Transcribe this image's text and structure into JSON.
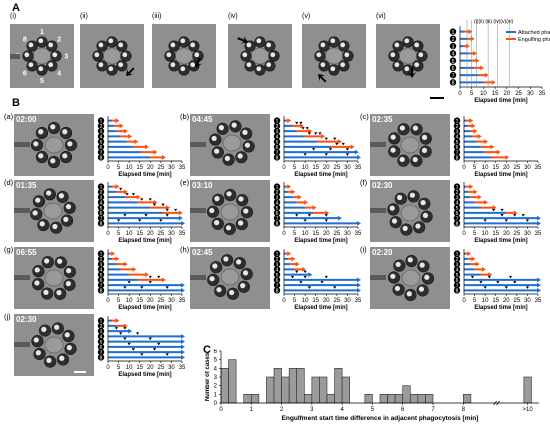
{
  "panel_A": {
    "label": "A",
    "subs": [
      "(i)",
      "(ii)",
      "(iii)",
      "(iv)",
      "(v)",
      "(vi)"
    ],
    "cells": [
      "1",
      "2",
      "3",
      "4",
      "5",
      "6",
      "7",
      "8"
    ],
    "legend": {
      "attached": "Attached phase",
      "engulfing": "Engulfing phase"
    },
    "timeline_marks": "(i)(ii) (iii) (iv)(v)(vi)",
    "xlabel": "Elapsed time [min]",
    "ticks": [
      "0",
      "5",
      "10",
      "15",
      "20",
      "25",
      "30",
      "35"
    ]
  },
  "panel_B": {
    "label": "B",
    "panels": [
      {
        "sub": "(a)",
        "time": "02:00"
      },
      {
        "sub": "(b)",
        "time": "04:45"
      },
      {
        "sub": "(c)",
        "time": "02:35"
      },
      {
        "sub": "(d)",
        "time": "01:35"
      },
      {
        "sub": "(e)",
        "time": "03:10"
      },
      {
        "sub": "(f)",
        "time": "02:30"
      },
      {
        "sub": "(g)",
        "time": "06:55"
      },
      {
        "sub": "(h)",
        "time": "02:45"
      },
      {
        "sub": "(i)",
        "time": "02:20"
      },
      {
        "sub": "(j)",
        "time": "02:30"
      }
    ],
    "xlabel": "Elapsed time [min]",
    "ticks": [
      "0",
      "5",
      "10",
      "15",
      "20",
      "25",
      "30",
      "35"
    ]
  },
  "panel_C": {
    "label": "C",
    "ylabel": "Number of cases",
    "xlabel": "Engulfment start time difference in adjacent phagocytosis [min]",
    "yticks": [
      "0",
      "1",
      "2",
      "3",
      "4",
      "5",
      "6"
    ],
    "xticks": [
      "0",
      "1",
      "2",
      "3",
      "4",
      "5",
      "6",
      "7",
      "8",
      ">10"
    ]
  },
  "colors": {
    "attached": "#1f6fd1",
    "engulfing": "#ff4f12",
    "micro_bg": "#8f8f8f"
  },
  "chart_data": {
    "type": "bar",
    "title": "",
    "xlabel": "Engulfment start time difference in adjacent phagocytosis [min]",
    "ylabel": "Number of cases",
    "ylim": [
      0,
      6
    ],
    "bin_width": 0.25,
    "bin_starts": [
      0,
      0.25,
      0.5,
      0.75,
      1,
      1.25,
      1.5,
      1.75,
      2,
      2.25,
      2.5,
      2.75,
      3,
      3.25,
      3.5,
      3.75,
      4,
      4.25,
      4.5,
      4.75,
      5,
      5.25,
      5.5,
      5.75,
      6,
      6.25,
      6.5,
      6.75,
      7,
      7.25,
      7.5,
      7.75,
      8,
      8.25,
      8.5,
      8.75,
      9,
      9.25,
      9.5,
      9.75,
      10
    ],
    "values": [
      4,
      5,
      0,
      1,
      1,
      0,
      3,
      4,
      3,
      4,
      4,
      1,
      3,
      3,
      1,
      4,
      3,
      0,
      0,
      1,
      0,
      1,
      1,
      1,
      2,
      1,
      1,
      1,
      0,
      0,
      0,
      0,
      1,
      0,
      0,
      0,
      0,
      0,
      0,
      0,
      3
    ],
    "xticks": [
      "0",
      "1",
      "2",
      "3",
      "4",
      "5",
      "6",
      "7",
      "8",
      ">10"
    ]
  }
}
